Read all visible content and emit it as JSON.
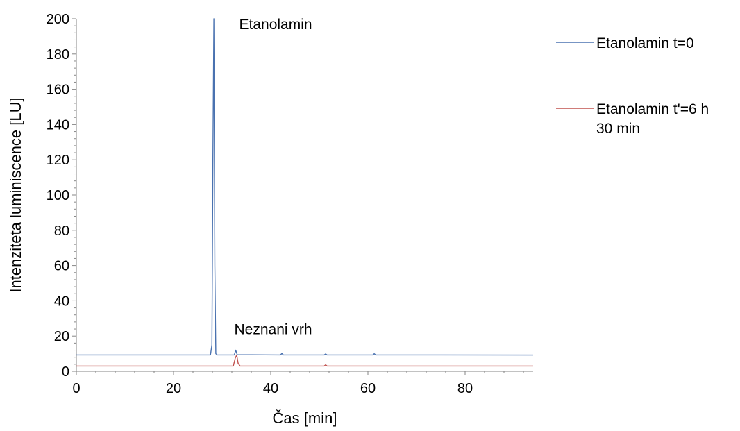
{
  "chart_data": {
    "type": "line",
    "xlabel": "Čas [min]",
    "ylabel": "Intenziteta luminiscence [LU]",
    "xlim": [
      0,
      94
    ],
    "ylim": [
      0,
      200
    ],
    "x_ticks": [
      0,
      20,
      40,
      60,
      80
    ],
    "y_ticks": [
      0,
      20,
      40,
      60,
      80,
      100,
      120,
      140,
      160,
      180,
      200
    ],
    "grid": false,
    "legend_position": "right",
    "series": [
      {
        "name": "Etanolamin t=0",
        "color": "#4a72b0",
        "points": [
          [
            0,
            9.3
          ],
          [
            27.6,
            9.3
          ],
          [
            27.9,
            15
          ],
          [
            28.1,
            120
          ],
          [
            28.3,
            200
          ],
          [
            28.5,
            60
          ],
          [
            28.7,
            10
          ],
          [
            29.0,
            9.3
          ],
          [
            32.5,
            9.3
          ],
          [
            32.8,
            12
          ],
          [
            33.1,
            9.4
          ],
          [
            42.0,
            9.3
          ],
          [
            42.3,
            10.1
          ],
          [
            42.6,
            9.3
          ],
          [
            51.0,
            9.3
          ],
          [
            51.3,
            9.9
          ],
          [
            51.6,
            9.3
          ],
          [
            61.0,
            9.3
          ],
          [
            61.3,
            10.0
          ],
          [
            61.6,
            9.3
          ],
          [
            94,
            9.2
          ]
        ]
      },
      {
        "name": "Etanolamin t'=6 h\n30 min",
        "color": "#c0504d",
        "points": [
          [
            0,
            3.0
          ],
          [
            32.3,
            3.0
          ],
          [
            32.7,
            7.5
          ],
          [
            33.0,
            9.2
          ],
          [
            33.3,
            4.5
          ],
          [
            33.7,
            3.0
          ],
          [
            51.0,
            3.0
          ],
          [
            51.3,
            3.7
          ],
          [
            51.6,
            3.0
          ],
          [
            94,
            3.0
          ]
        ]
      }
    ],
    "annotations": [
      {
        "text": "Etanolamin",
        "x": 33.5,
        "y": 194
      },
      {
        "text": "Neznani vrh",
        "x": 32.5,
        "y": 21
      }
    ]
  }
}
